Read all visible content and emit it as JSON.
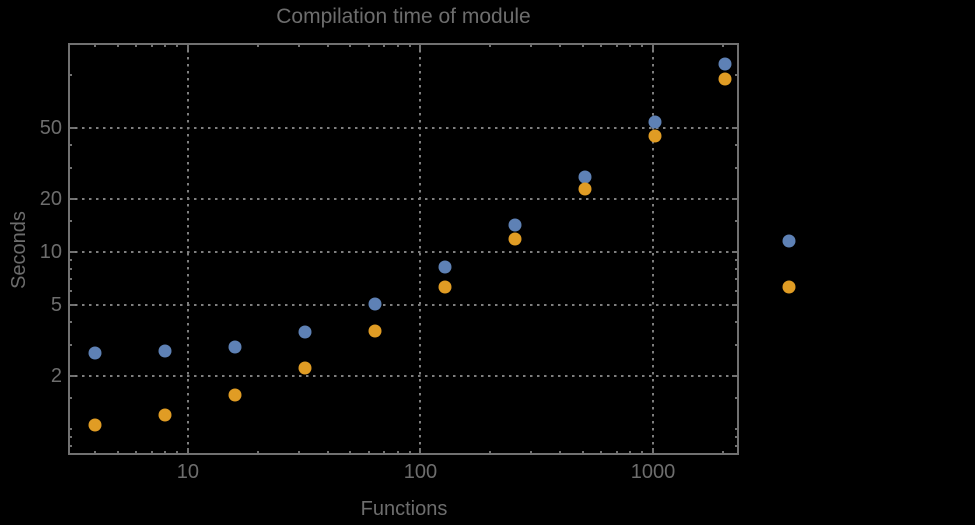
{
  "window": {
    "background": "#000000"
  },
  "chart_data": {
    "type": "scatter",
    "title": "Compilation time of module",
    "xlabel": "Functions",
    "ylabel": "Seconds",
    "xscale": "log",
    "yscale": "log",
    "xlim": [
      3.05,
      2344
    ],
    "ylim": [
      0.713,
      151.6
    ],
    "grid": {
      "shown": true,
      "style": "dotted",
      "color": "#7e7e7e"
    },
    "x": [
      4,
      8,
      16,
      32,
      64,
      128,
      256,
      512,
      1024,
      2048
    ],
    "series": [
      {
        "name": "series-blue",
        "color": "#5E81B5",
        "values": [
          2.7,
          2.75,
          2.9,
          3.55,
          5.1,
          8.2,
          14.2,
          26.5,
          54,
          116
        ]
      },
      {
        "name": "series-orange",
        "color": "#E09C24",
        "values": [
          1.05,
          1.2,
          1.55,
          2.2,
          3.6,
          6.35,
          11.8,
          22.6,
          45.5,
          95
        ]
      }
    ],
    "x_major_ticks": [
      {
        "value": 10,
        "label": "10"
      },
      {
        "value": 100,
        "label": "100"
      },
      {
        "value": 1000,
        "label": "1000"
      }
    ],
    "y_major_ticks": [
      {
        "value": 2,
        "label": "2"
      },
      {
        "value": 5,
        "label": "5"
      },
      {
        "value": 10,
        "label": "10"
      },
      {
        "value": 20,
        "label": "20"
      },
      {
        "value": 50,
        "label": "50"
      }
    ],
    "x_minor_ticks": [
      4,
      5,
      6,
      7,
      8,
      9,
      20,
      30,
      40,
      50,
      60,
      70,
      80,
      90,
      200,
      300,
      400,
      500,
      600,
      700,
      800,
      900,
      2000
    ],
    "y_minor_ticks": [
      0.8,
      0.9,
      1,
      1.5,
      3,
      4,
      6,
      7,
      8,
      9,
      15,
      30,
      40,
      100
    ],
    "legend": {
      "position": "right-outside",
      "marker_colors": [
        "#5E81B5",
        "#E09C24"
      ],
      "labels_visible": false
    },
    "styles": {
      "frame_color": "#717171",
      "text_color": "#6d6d6d",
      "marker_diameter_px": 13
    }
  }
}
